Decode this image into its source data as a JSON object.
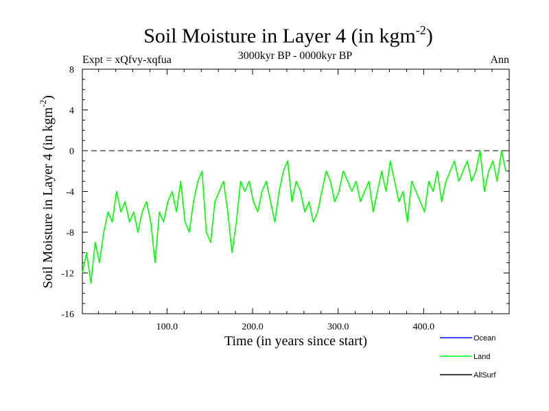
{
  "chart_data": {
    "type": "line",
    "title": "Soil Moisture in Layer 4 (in kgm",
    "title_sup": "-2",
    "title_close": ")",
    "subtitle": "3000kyr BP - 0000kyr BP",
    "expt_label": "Expt = xQfvy-xqfua",
    "season_label": "Ann",
    "xlabel": "Time (in years since start)",
    "ylabel": "Soil Moisture in Layer 4 (in kgm",
    "ylabel_sup": "-2",
    "ylabel_close": ")",
    "xlim": [
      1,
      500
    ],
    "ylim": [
      -16,
      8
    ],
    "x_ticks": [
      100,
      200,
      300,
      400
    ],
    "x_tick_labels": [
      "100.0",
      "200.0",
      "300.0",
      "400.0"
    ],
    "y_ticks": [
      -16,
      -12,
      -8,
      -4,
      0,
      4,
      8
    ],
    "y_tick_labels": [
      "-16",
      "-12",
      "-8",
      "-4",
      "0",
      "4",
      "8"
    ],
    "reference_line": 0,
    "legend": [
      {
        "name": "Ocean",
        "color": "#0000ff"
      },
      {
        "name": "Land",
        "color": "#00ff00"
      },
      {
        "name": "AllSurf",
        "color": "#000000"
      }
    ],
    "series": [
      {
        "name": "Land",
        "color": "#00ff00",
        "x_start": 1,
        "x_step": 5,
        "values": [
          -12,
          -10,
          -13,
          -9,
          -11,
          -8,
          -6,
          -7,
          -4,
          -6,
          -5,
          -7,
          -6,
          -8,
          -6,
          -5,
          -7,
          -11,
          -6,
          -7,
          -5,
          -4,
          -6,
          -3,
          -7,
          -8,
          -5,
          -3,
          -2,
          -8,
          -9,
          -5,
          -4,
          -3,
          -6,
          -10,
          -7,
          -3,
          -4,
          -3,
          -5,
          -6,
          -4,
          -3,
          -5,
          -7,
          -4,
          -2,
          -1,
          -5,
          -3,
          -4,
          -6,
          -5,
          -7,
          -6,
          -4,
          -2,
          -3,
          -5,
          -4,
          -2,
          -3,
          -4,
          -3,
          -5,
          -4,
          -3,
          -6,
          -4,
          -2,
          -4,
          -1,
          -3,
          -5,
          -4,
          -7,
          -3,
          -4,
          -5,
          -6,
          -3,
          -4,
          -2,
          -5,
          -3,
          -2,
          -1,
          -3,
          -2,
          -1,
          -3,
          -2,
          0,
          -4,
          -2,
          -1,
          -3,
          0,
          -2
        ]
      },
      {
        "name": "Ocean",
        "color": "#0000ff",
        "values": []
      },
      {
        "name": "AllSurf",
        "color": "#000000",
        "values": []
      }
    ]
  }
}
